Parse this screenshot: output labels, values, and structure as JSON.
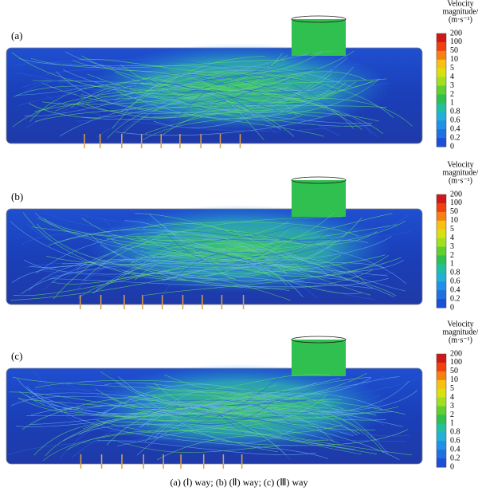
{
  "panels": [
    {
      "label": "(a)",
      "legend": {
        "title_line1": "Velocity",
        "title_line2": "magnitude/",
        "unit": "(m·s⁻¹)",
        "ticks": [
          "200",
          "100",
          "50",
          "10",
          "5",
          "4",
          "3",
          "2",
          "1",
          "0.8",
          "0.6",
          "0.4",
          "0.2",
          "0"
        ]
      }
    },
    {
      "label": "(b)",
      "legend": {
        "title_line1": "Velocity",
        "title_line2": "magnitude/",
        "unit": "(m·s⁻¹)",
        "ticks": [
          "200",
          "100",
          "50",
          "10",
          "5",
          "4",
          "3",
          "2",
          "1",
          "0.8",
          "0.6",
          "0.4",
          "0.2",
          "0"
        ]
      }
    },
    {
      "label": "(c)",
      "legend": {
        "title_line1": "Velocity",
        "title_line2": "magnitude/",
        "unit": "(m·s⁻¹)",
        "ticks": [
          "200",
          "100",
          "50",
          "10",
          "5",
          "4",
          "3",
          "2",
          "1",
          "0.8",
          "0.6",
          "0.4",
          "0.2",
          "0"
        ]
      }
    }
  ],
  "caption": "(a) (Ⅰ) way; (b) (Ⅱ) way; (c) (Ⅲ) way"
}
